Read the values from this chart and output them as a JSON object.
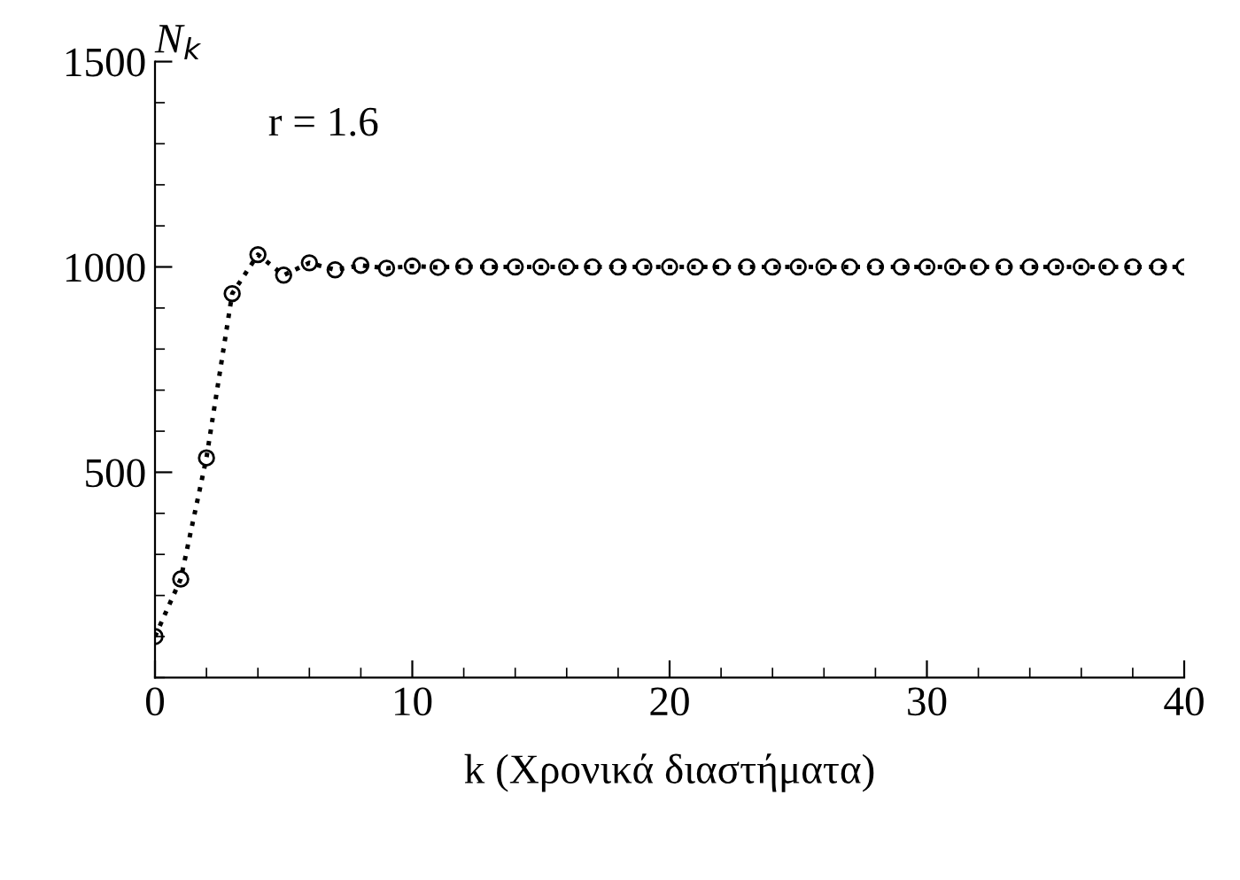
{
  "chart_data": {
    "type": "line",
    "x": [
      0,
      1,
      2,
      3,
      4,
      5,
      6,
      7,
      8,
      9,
      10,
      11,
      12,
      13,
      14,
      15,
      16,
      17,
      18,
      19,
      20,
      21,
      22,
      23,
      24,
      25,
      26,
      27,
      28,
      29,
      30,
      31,
      32,
      33,
      34,
      35,
      36,
      37,
      38,
      39,
      40
    ],
    "series": [
      {
        "color": "#000000",
        "values": [
          100,
          240,
          535,
          935,
          1030,
          980,
          1010,
          993,
          1004,
          997,
          1002,
          999,
          1001,
          1000,
          1000,
          1000,
          1000,
          1000,
          1000,
          1000,
          1000,
          1000,
          1000,
          1000,
          1000,
          1000,
          1000,
          1000,
          1000,
          1000,
          1000,
          1000,
          1000,
          1000,
          1000,
          1000,
          1000,
          1000,
          1000,
          1000,
          1000
        ]
      }
    ],
    "xlabel": "k (Χρονικά διαστήματα)",
    "ylabel": "N$_{k}$",
    "annotations": [
      "r = 1.6"
    ],
    "xlim": [
      0,
      40
    ],
    "ylim": [
      0,
      1500
    ],
    "xticks": [
      0,
      10,
      20,
      30,
      40
    ],
    "yticks": [
      500,
      1000,
      1500
    ],
    "marker": "circle",
    "line_style": "dotted",
    "grid": false,
    "legend": false
  }
}
